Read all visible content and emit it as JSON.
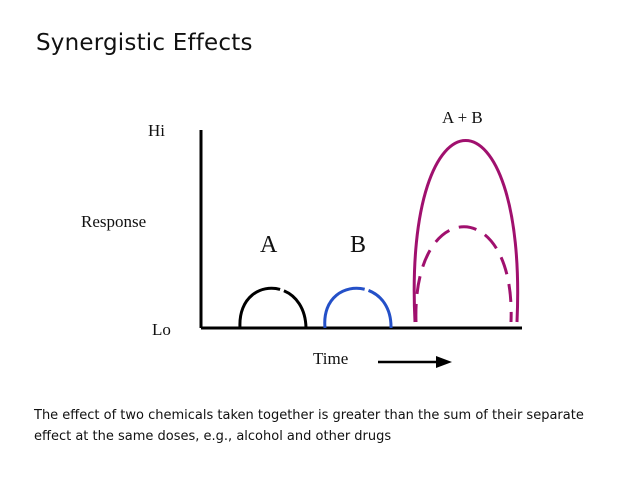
{
  "title": "Synergistic Effects",
  "axes": {
    "y_label": "Response",
    "y_high": "Hi",
    "y_low": "Lo",
    "x_label": "Time"
  },
  "curves": {
    "a_label": "A",
    "b_label": "B",
    "combined_label": "A + B"
  },
  "colors": {
    "curve_a": "#000000",
    "curve_b": "#2450c8",
    "curve_ab": "#a0106e",
    "axis": "#000000"
  },
  "caption": "The effect of two chemicals taken together is greater than the sum of their separate effect at the same doses, e.g., alcohol and other drugs"
}
